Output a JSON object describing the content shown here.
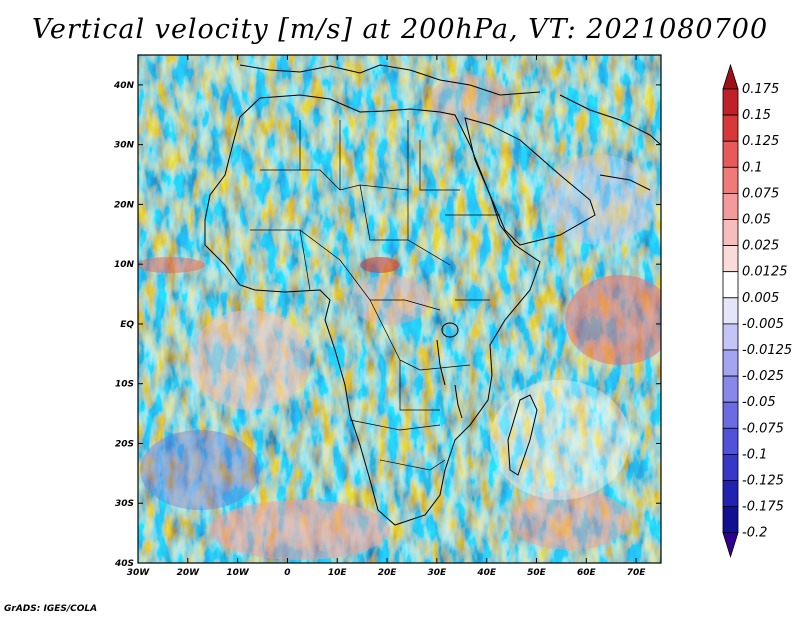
{
  "title": "Vertical velocity [m/s] at 200hPa, VT: 2021080700",
  "footer": "GrADS: IGES/COLA",
  "chart_data": {
    "type": "heatmap",
    "title": "Vertical velocity [m/s] at 200hPa, VT: 2021080700",
    "xlabel": "",
    "ylabel": "",
    "xlim": [
      -30,
      75
    ],
    "ylim": [
      -40,
      45
    ],
    "x_ticks": [
      -30,
      -20,
      -10,
      0,
      10,
      20,
      30,
      40,
      50,
      60,
      70
    ],
    "x_tick_labels": [
      "30W",
      "20W",
      "10W",
      "0",
      "10E",
      "20E",
      "30E",
      "40E",
      "50E",
      "60E",
      "70E"
    ],
    "y_ticks": [
      40,
      30,
      20,
      10,
      0,
      -10,
      -20,
      -30,
      -40
    ],
    "y_tick_labels": [
      "40N",
      "30N",
      "20N",
      "10N",
      "EQ",
      "10S",
      "20S",
      "30S",
      "40S"
    ],
    "colorbar": {
      "labels": [
        "0.175",
        "0.15",
        "0.125",
        "0.1",
        "0.075",
        "0.05",
        "0.025",
        "0.0125",
        "0.005",
        "-0.005",
        "-0.0125",
        "-0.025",
        "-0.05",
        "-0.075",
        "-0.1",
        "-0.125",
        "-0.175",
        "-0.2"
      ],
      "colors": [
        "#a01018",
        "#c02028",
        "#d83838",
        "#e85a5a",
        "#f07a7a",
        "#f49a9a",
        "#f8bcbc",
        "#fbdada",
        "#ffffff",
        "#e4e4fb",
        "#c4c4f6",
        "#a4a4f0",
        "#8888ea",
        "#6c6ce2",
        "#5252d8",
        "#3838c8",
        "#2222b0",
        "#101090",
        "#300090"
      ]
    }
  }
}
